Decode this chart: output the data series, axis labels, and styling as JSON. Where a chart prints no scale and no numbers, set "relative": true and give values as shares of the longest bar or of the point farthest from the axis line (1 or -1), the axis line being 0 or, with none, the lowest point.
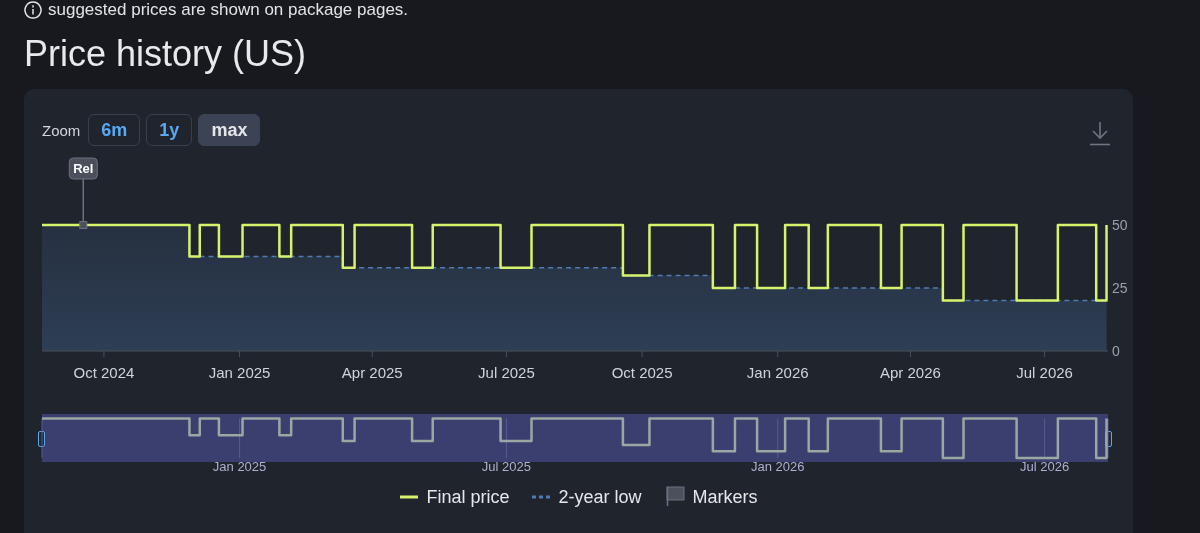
{
  "chart_data": [
    {
      "type": "step",
      "title": "Price history (US)",
      "annotations": [
        "suggested prices are shown on package pages.",
        "Zoom",
        "6m",
        "1y",
        "max"
      ],
      "xlim": [
        "2024-08-20",
        "2026-08-13"
      ],
      "xticks": [
        {
          "value": "2024-10-01",
          "label": "Oct 2024"
        },
        {
          "value": "2025-01-01",
          "label": "Jan 2025"
        },
        {
          "value": "2025-04-01",
          "label": "Apr 2025"
        },
        {
          "value": "2025-07-01",
          "label": "Jul 2025"
        },
        {
          "value": "2025-10-01",
          "label": "Oct 2025"
        },
        {
          "value": "2026-01-01",
          "label": "Jan 2026"
        },
        {
          "value": "2026-04-01",
          "label": "Apr 2026"
        },
        {
          "value": "2026-07-01",
          "label": "Jul 2026"
        }
      ],
      "ylim": [
        0,
        50
      ],
      "yticks": [
        0,
        25,
        50
      ],
      "legend": "bottom",
      "series": [
        {
          "name": "Final price",
          "type": "step",
          "color": "#d6f36c",
          "x": [
            "2024-08-20",
            "2024-11-28",
            "2024-12-05",
            "2024-12-18",
            "2025-01-03",
            "2025-01-28",
            "2025-02-05",
            "2025-03-12",
            "2025-03-20",
            "2025-04-28",
            "2025-05-12",
            "2025-06-27",
            "2025-07-18",
            "2025-09-18",
            "2025-10-06",
            "2025-11-18",
            "2025-12-03",
            "2025-12-18",
            "2026-01-06",
            "2026-01-22",
            "2026-02-04",
            "2026-03-12",
            "2026-03-26",
            "2026-04-23",
            "2026-05-07",
            "2026-06-12",
            "2026-07-10",
            "2026-08-05",
            "2026-08-12"
          ],
          "values": [
            50,
            37.5,
            50,
            37.5,
            50,
            37.5,
            50,
            33,
            50,
            33,
            50,
            33,
            50,
            30,
            50,
            25,
            50,
            25,
            50,
            25,
            50,
            25,
            50,
            20,
            50,
            20,
            50,
            20,
            50
          ]
        },
        {
          "name": "2-year low",
          "type": "area",
          "color": "#4d7bb3",
          "line_style": "dashed",
          "x": [
            "2024-08-20",
            "2024-11-28",
            "2025-03-12",
            "2025-09-18",
            "2025-11-18",
            "2026-04-23",
            "2026-08-12"
          ],
          "values": [
            50,
            37.5,
            33,
            30,
            25,
            20,
            20
          ]
        },
        {
          "name": "Markers",
          "type": "scatter",
          "color": "#4b505c",
          "x": [
            "2024-09-17"
          ],
          "values": [
            50
          ],
          "value_labels": [
            "Rel"
          ]
        }
      ]
    },
    {
      "type": "step",
      "relative": true,
      "tick_labels": "x",
      "grid": "x",
      "xlim": [
        "2024-08-20",
        "2026-08-13"
      ],
      "xticks": [
        {
          "value": "2025-01-01",
          "label": "Jan 2025"
        },
        {
          "value": "2025-07-01",
          "label": "Jul 2025"
        },
        {
          "value": "2026-01-01",
          "label": "Jan 2026"
        },
        {
          "value": "2026-07-01",
          "label": "Jul 2026"
        }
      ],
      "x": [
        "2024-08-20",
        "2024-11-28",
        "2024-12-05",
        "2024-12-18",
        "2025-01-03",
        "2025-01-28",
        "2025-02-05",
        "2025-03-12",
        "2025-03-20",
        "2025-04-28",
        "2025-05-12",
        "2025-06-27",
        "2025-07-18",
        "2025-09-18",
        "2025-10-06",
        "2025-11-18",
        "2025-12-03",
        "2025-12-18",
        "2026-01-06",
        "2026-01-22",
        "2026-02-04",
        "2026-03-12",
        "2026-03-26",
        "2026-04-23",
        "2026-05-07",
        "2026-06-12",
        "2026-07-10",
        "2026-08-05",
        "2026-08-12"
      ],
      "series": [
        {
          "color": "#9aa7a2",
          "values": [
            1,
            0.58,
            1,
            0.58,
            1,
            0.58,
            1,
            0.43,
            1,
            0.43,
            1,
            0.43,
            1,
            0.33,
            1,
            0.17,
            1,
            0.17,
            1,
            0.17,
            1,
            0.17,
            1,
            0,
            1,
            0,
            1,
            0,
            1
          ]
        }
      ]
    }
  ]
}
